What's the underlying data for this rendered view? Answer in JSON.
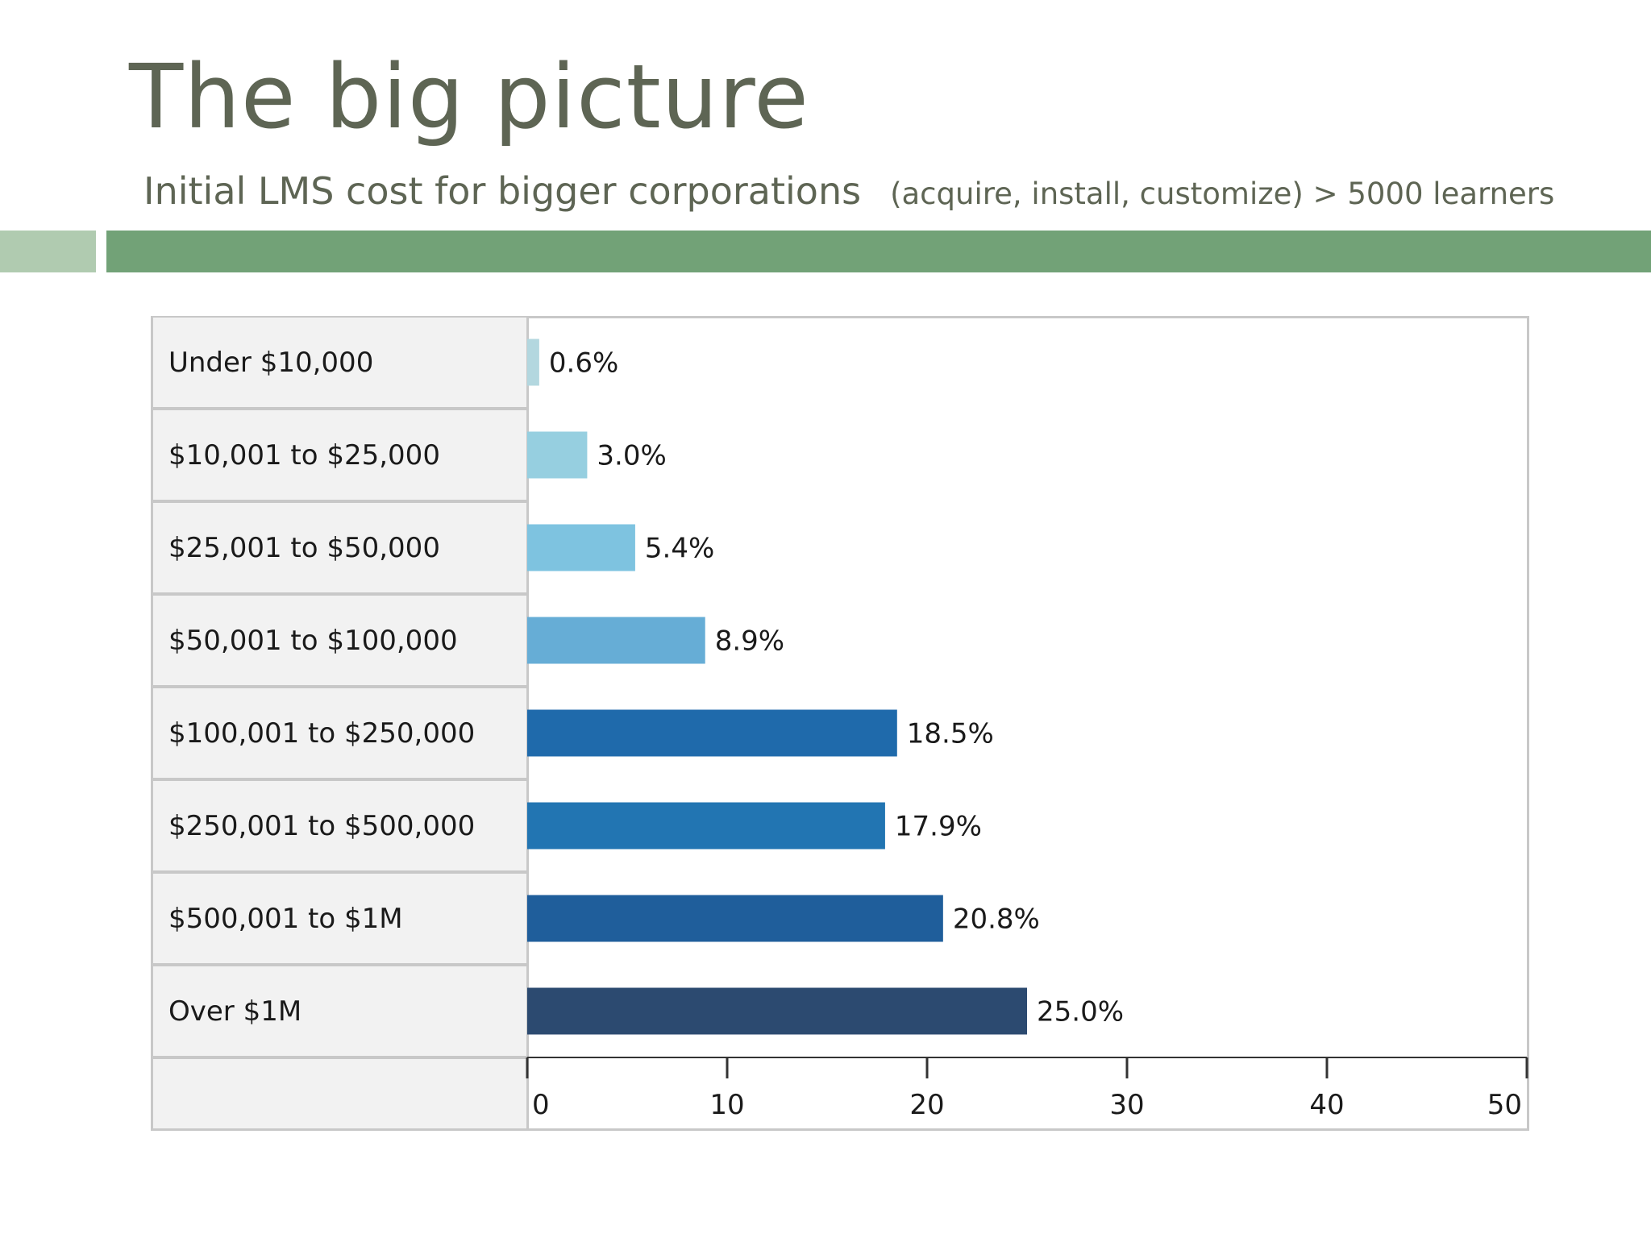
{
  "slide": {
    "title": "The big picture",
    "subtitle": "Initial LMS cost for bigger corporations",
    "subtitle_note": "(acquire, install, customize) > 5000 learners"
  },
  "colors": {
    "title_text": "#5e6554",
    "band_light": "#b0cbb0",
    "band_dark": "#72a277"
  },
  "chart_data": {
    "type": "bar",
    "orientation": "horizontal",
    "categories": [
      "Under $10,000",
      "$10,001 to $25,000",
      "$25,001 to $50,000",
      "$50,001 to $100,000",
      "$100,001 to $250,000",
      "$250,001 to $500,000",
      "$500,001 to $1M",
      "Over $1M"
    ],
    "values": [
      0.6,
      3.0,
      5.4,
      8.9,
      18.5,
      17.9,
      20.8,
      25.0
    ],
    "value_labels": [
      "0.6%",
      "3.0%",
      "5.4%",
      "8.9%",
      "18.5%",
      "17.9%",
      "20.8%",
      "25.0%"
    ],
    "bar_colors": [
      "#b3d7df",
      "#96cfe0",
      "#7ec3e0",
      "#66add6",
      "#1f6aab",
      "#2275b2",
      "#1f5e9b",
      "#2c4a70"
    ],
    "xlim": [
      0,
      50
    ],
    "xticks": [
      0,
      10,
      20,
      30,
      40,
      50
    ],
    "tick_labels": [
      "0",
      "10",
      "20",
      "30",
      "40",
      "50"
    ],
    "grid": false,
    "legend": "none"
  }
}
